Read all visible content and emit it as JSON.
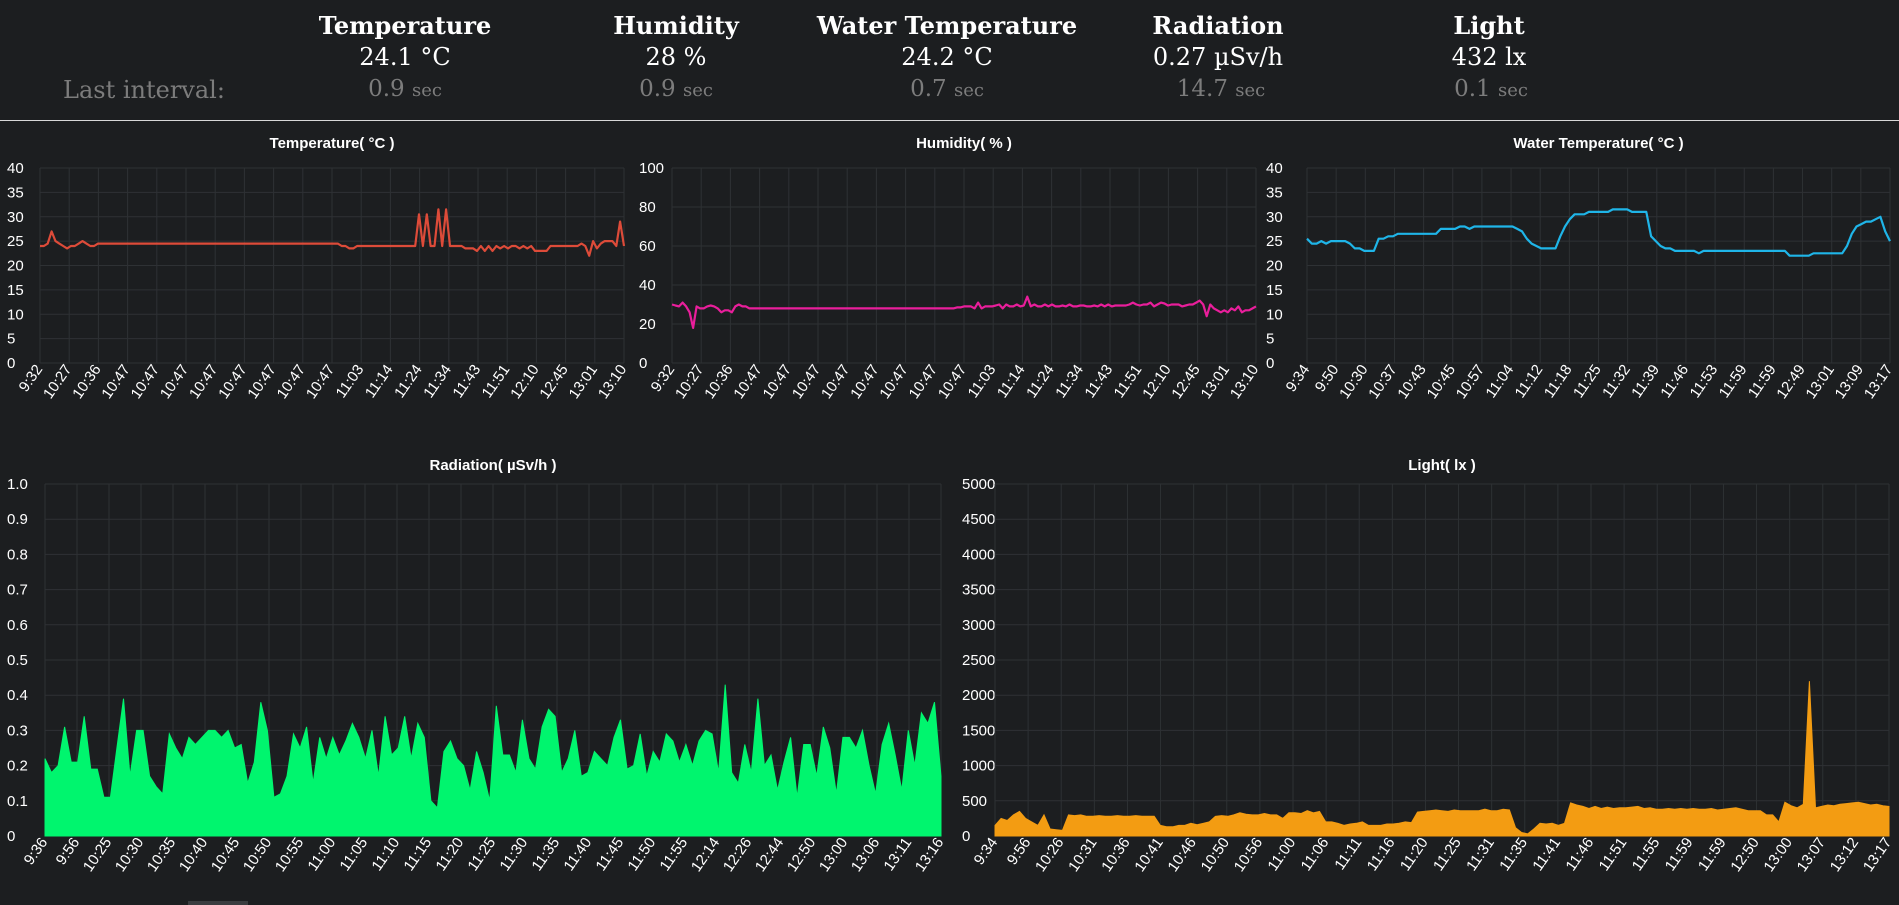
{
  "header": {
    "last_interval_label": "Last interval:",
    "metrics": [
      {
        "title": "Temperature",
        "value": "24.1 °C",
        "interval": "0.9",
        "unit": "sec"
      },
      {
        "title": "Humidity",
        "value": "28 %",
        "interval": "0.9",
        "unit": "sec"
      },
      {
        "title": "Water Temperature",
        "value": "24.2 °C",
        "interval": "0.7",
        "unit": "sec"
      },
      {
        "title": "Radiation",
        "value": "0.27 µSv/h",
        "interval": "14.7",
        "unit": "sec"
      },
      {
        "title": "Light",
        "value": "432 lx",
        "interval": "0.1",
        "unit": "sec"
      }
    ]
  },
  "chart_data": [
    {
      "type": "line",
      "title": "Temperature( °C )",
      "color": "#dd4b39",
      "ylim": [
        0,
        40
      ],
      "yticks": [
        "0",
        "5",
        "10",
        "15",
        "20",
        "25",
        "30",
        "35",
        "40"
      ],
      "xticks": [
        "9:32",
        "10:27",
        "10:36",
        "10:47",
        "10:47",
        "10:47",
        "10:47",
        "10:47",
        "10:47",
        "10:47",
        "10:47",
        "11:03",
        "11:14",
        "11:24",
        "11:34",
        "11:43",
        "11:51",
        "12:10",
        "12:45",
        "13:01",
        "13:10"
      ],
      "values": [
        24,
        24,
        24.5,
        27,
        25,
        24.5,
        24,
        23.5,
        24,
        24,
        24.5,
        25,
        24.5,
        24,
        24,
        24.5,
        24.5,
        24.5,
        24.5,
        24.5,
        24.5,
        24.5,
        24.5,
        24.5,
        24.5,
        24.5,
        24.5,
        24.5,
        24.5,
        24.5,
        24.5,
        24.5,
        24.5,
        24.5,
        24.5,
        24.5,
        24.5,
        24.5,
        24.5,
        24.5,
        24.5,
        24.5,
        24.5,
        24.5,
        24.5,
        24.5,
        24.5,
        24.5,
        24.5,
        24.5,
        24.5,
        24.5,
        24.5,
        24.5,
        24.5,
        24.5,
        24.5,
        24.5,
        24.5,
        24.5,
        24.5,
        24.5,
        24.5,
        24.5,
        24.5,
        24.5,
        24.5,
        24.5,
        24.5,
        24.5,
        24.5,
        24.5,
        24.5,
        24.5,
        24.5,
        24.5,
        24.5,
        24.5,
        24,
        24,
        23.5,
        23.5,
        24,
        24,
        24,
        24,
        24,
        24,
        24,
        24,
        24,
        24,
        24,
        24,
        24,
        24,
        24,
        24,
        30.5,
        24,
        30.5,
        24,
        24,
        31.5,
        24,
        31.5,
        24,
        24,
        24,
        24,
        23.5,
        23.5,
        23.5,
        23,
        24,
        23,
        24,
        23,
        24,
        23.5,
        24,
        23.5,
        24,
        24,
        23.5,
        24,
        23.5,
        24,
        23,
        23,
        23,
        23,
        24,
        24,
        24,
        24,
        24,
        24,
        24,
        24,
        24.5,
        24,
        22,
        25,
        23.5,
        24.5,
        25,
        25,
        25,
        24,
        29,
        24
      ]
    },
    {
      "type": "line",
      "title": "Humidity( % )",
      "color": "#e91e9b",
      "ylim": [
        0,
        100
      ],
      "yticks": [
        "0",
        "20",
        "40",
        "60",
        "80",
        "100"
      ],
      "xticks": [
        "9:32",
        "10:27",
        "10:36",
        "10:47",
        "10:47",
        "10:47",
        "10:47",
        "10:47",
        "10:47",
        "10:47",
        "10:47",
        "11:03",
        "11:14",
        "11:24",
        "11:34",
        "11:43",
        "11:51",
        "12:10",
        "12:45",
        "13:01",
        "13:10"
      ],
      "values": [
        30,
        29.5,
        29,
        31,
        29,
        26,
        18,
        29,
        28,
        28,
        29,
        29.5,
        29,
        28,
        26,
        27,
        27,
        26,
        29,
        30,
        29,
        29,
        28,
        28,
        28,
        28,
        28,
        28,
        28,
        28,
        28,
        28,
        28,
        28,
        28,
        28,
        28,
        28,
        28,
        28,
        28,
        28,
        28,
        28,
        28,
        28,
        28,
        28,
        28,
        28,
        28,
        28,
        28,
        28,
        28,
        28,
        28,
        28,
        28,
        28,
        28,
        28,
        28,
        28,
        28,
        28,
        28,
        28,
        28,
        28,
        28,
        28,
        28,
        28,
        28,
        28,
        28,
        28,
        28,
        28,
        28,
        28.5,
        28.5,
        29,
        29,
        29,
        28,
        31,
        28,
        29,
        29,
        29,
        29.5,
        30,
        28,
        30,
        29,
        29,
        30,
        29,
        29.5,
        34,
        29,
        30,
        29,
        29,
        30,
        29,
        30,
        29,
        29,
        29.5,
        29,
        30,
        29,
        29,
        29.5,
        29.5,
        29,
        29,
        29.5,
        29,
        30,
        29,
        30,
        29,
        29.5,
        29.5,
        29.5,
        29.5,
        30,
        31,
        30,
        29.5,
        30,
        30,
        31,
        29,
        30,
        31,
        30.5,
        29.5,
        30,
        30,
        30,
        29,
        29.5,
        30,
        30,
        31,
        32,
        30,
        24,
        30,
        28,
        27,
        26,
        27,
        26,
        28,
        27,
        29,
        26,
        27,
        27,
        28,
        29
      ]
    },
    {
      "type": "line",
      "title": "Water Temperature( °C )",
      "color": "#1fb5e8",
      "ylim": [
        0,
        40
      ],
      "yticks": [
        "0",
        "5",
        "10",
        "15",
        "20",
        "25",
        "30",
        "35",
        "40"
      ],
      "xticks": [
        "9:34",
        "9:50",
        "10:30",
        "10:37",
        "10:43",
        "10:45",
        "10:57",
        "11:04",
        "11:12",
        "11:18",
        "11:25",
        "11:32",
        "11:39",
        "11:46",
        "11:53",
        "11:59",
        "11:59",
        "12:49",
        "13:01",
        "13:09",
        "13:17"
      ],
      "values": [
        25.5,
        24.5,
        24.5,
        25,
        24.5,
        25,
        25,
        25,
        25,
        24.5,
        23.5,
        23.5,
        23,
        23,
        23,
        25.5,
        25.5,
        26,
        26,
        26.5,
        26.5,
        26.5,
        26.5,
        26.5,
        26.5,
        26.5,
        26.5,
        26.5,
        27.5,
        27.5,
        27.5,
        27.5,
        28,
        28,
        27.5,
        28,
        28,
        28,
        28,
        28,
        28,
        28,
        28,
        28,
        27.5,
        27,
        25.5,
        24.5,
        24,
        23.5,
        23.5,
        23.5,
        23.5,
        26,
        28,
        29.5,
        30.5,
        30.5,
        30.5,
        31,
        31,
        31,
        31,
        31,
        31.5,
        31.5,
        31.5,
        31.5,
        31,
        31,
        31,
        31,
        26,
        25,
        24,
        23.5,
        23.5,
        23,
        23,
        23,
        23,
        23,
        22.5,
        23,
        23,
        23,
        23,
        23,
        23,
        23,
        23,
        23,
        23,
        23,
        23,
        23,
        23,
        23,
        23,
        23,
        23,
        22,
        22,
        22,
        22,
        22,
        22.5,
        22.5,
        22.5,
        22.5,
        22.5,
        22.5,
        22.5,
        24,
        26.5,
        28,
        28.5,
        29,
        29,
        29.5,
        30,
        27,
        25
      ]
    },
    {
      "type": "area",
      "title": "Radiation( µSv/h )",
      "color": "#00f56e",
      "ylim": [
        0,
        1
      ],
      "yticks": [
        "0",
        "0.1",
        "0.2",
        "0.3",
        "0.4",
        "0.5",
        "0.6",
        "0.7",
        "0.8",
        "0.9",
        "1.0"
      ],
      "xticks": [
        "9:36",
        "9:56",
        "10:25",
        "10:30",
        "10:35",
        "10:40",
        "10:45",
        "10:50",
        "10:55",
        "11:00",
        "11:05",
        "11:10",
        "11:15",
        "11:20",
        "11:25",
        "11:30",
        "11:35",
        "11:40",
        "11:45",
        "11:50",
        "11:55",
        "12:14",
        "12:26",
        "12:44",
        "12:50",
        "13:00",
        "13:06",
        "13:11",
        "13:16"
      ],
      "values": [
        0.22,
        0.18,
        0.2,
        0.31,
        0.21,
        0.21,
        0.34,
        0.19,
        0.19,
        0.11,
        0.11,
        0.25,
        0.39,
        0.17,
        0.3,
        0.3,
        0.17,
        0.14,
        0.12,
        0.29,
        0.25,
        0.22,
        0.28,
        0.26,
        0.28,
        0.3,
        0.3,
        0.28,
        0.3,
        0.25,
        0.26,
        0.15,
        0.21,
        0.38,
        0.3,
        0.11,
        0.12,
        0.17,
        0.29,
        0.25,
        0.31,
        0.15,
        0.28,
        0.22,
        0.28,
        0.23,
        0.27,
        0.32,
        0.28,
        0.22,
        0.3,
        0.17,
        0.34,
        0.23,
        0.25,
        0.34,
        0.22,
        0.32,
        0.28,
        0.1,
        0.08,
        0.24,
        0.27,
        0.22,
        0.2,
        0.13,
        0.24,
        0.18,
        0.1,
        0.37,
        0.23,
        0.23,
        0.18,
        0.33,
        0.22,
        0.19,
        0.31,
        0.36,
        0.34,
        0.18,
        0.22,
        0.3,
        0.17,
        0.18,
        0.24,
        0.22,
        0.2,
        0.28,
        0.33,
        0.19,
        0.2,
        0.29,
        0.17,
        0.24,
        0.21,
        0.29,
        0.27,
        0.21,
        0.26,
        0.2,
        0.27,
        0.3,
        0.29,
        0.18,
        0.43,
        0.18,
        0.15,
        0.26,
        0.18,
        0.39,
        0.2,
        0.23,
        0.13,
        0.21,
        0.28,
        0.11,
        0.26,
        0.26,
        0.17,
        0.31,
        0.25,
        0.12,
        0.28,
        0.28,
        0.25,
        0.3,
        0.2,
        0.12,
        0.26,
        0.32,
        0.23,
        0.13,
        0.3,
        0.2,
        0.35,
        0.32,
        0.38,
        0.17
      ]
    },
    {
      "type": "area",
      "title": "Light( lx )",
      "color": "#f39c12",
      "ylim": [
        0,
        5000
      ],
      "yticks": [
        "0",
        "500",
        "1000",
        "1500",
        "2000",
        "2500",
        "3000",
        "3500",
        "4000",
        "4500",
        "5000"
      ],
      "xticks": [
        "9:34",
        "9:56",
        "10:26",
        "10:31",
        "10:36",
        "10:41",
        "10:46",
        "10:50",
        "10:56",
        "11:00",
        "11:06",
        "11:11",
        "11:16",
        "11:20",
        "11:25",
        "11:31",
        "11:35",
        "11:41",
        "11:46",
        "11:51",
        "11:55",
        "11:59",
        "11:59",
        "12:50",
        "13:00",
        "13:07",
        "13:12",
        "13:17"
      ],
      "values": [
        150,
        250,
        220,
        300,
        350,
        250,
        200,
        150,
        300,
        100,
        90,
        80,
        300,
        290,
        300,
        280,
        280,
        290,
        280,
        280,
        290,
        280,
        280,
        290,
        280,
        280,
        280,
        150,
        130,
        130,
        150,
        150,
        180,
        160,
        180,
        200,
        280,
        290,
        280,
        300,
        330,
        310,
        300,
        300,
        320,
        300,
        300,
        250,
        330,
        330,
        320,
        360,
        330,
        350,
        200,
        200,
        180,
        150,
        170,
        180,
        200,
        150,
        150,
        150,
        170,
        170,
        180,
        200,
        190,
        340,
        350,
        360,
        370,
        360,
        350,
        370,
        360,
        360,
        360,
        360,
        380,
        360,
        360,
        380,
        370,
        120,
        50,
        30,
        100,
        180,
        170,
        180,
        150,
        180,
        470,
        440,
        420,
        390,
        420,
        390,
        410,
        390,
        400,
        400,
        410,
        420,
        390,
        400,
        380,
        380,
        390,
        380,
        390,
        380,
        390,
        380,
        380,
        390,
        370,
        380,
        390,
        400,
        380,
        360,
        360,
        360,
        300,
        300,
        200,
        480,
        430,
        400,
        450,
        2200,
        400,
        420,
        440,
        430,
        450,
        460,
        470,
        480,
        460,
        440,
        450,
        430,
        420
      ]
    }
  ],
  "bottom_tab": ""
}
